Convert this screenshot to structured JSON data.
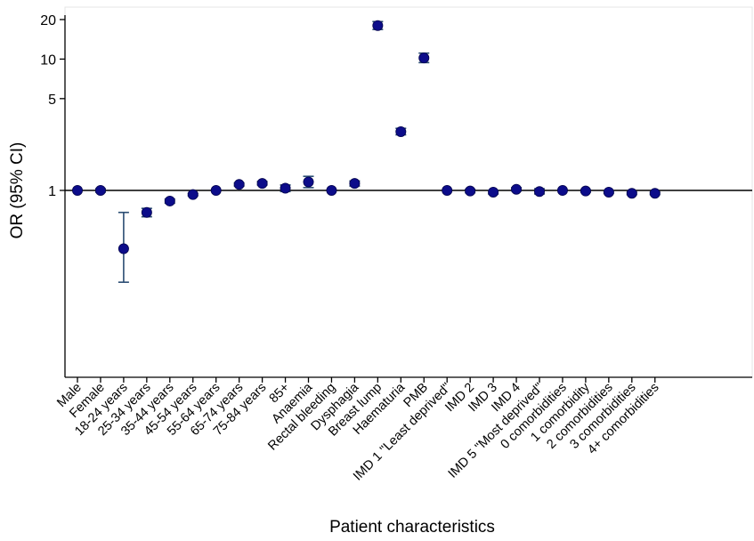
{
  "chart_data": {
    "type": "scatter",
    "title": "",
    "xlabel": "Patient characteristics",
    "ylabel": "OR (95% CI)",
    "y_scale": "log",
    "ylim": [
      0.2,
      21
    ],
    "y_ticks": [
      {
        "value": 1,
        "label": "1"
      },
      {
        "value": 5,
        "label": "5"
      },
      {
        "value": 10,
        "label": "10"
      },
      {
        "value": 20,
        "label": "20"
      }
    ],
    "reference_line": 1,
    "grid": false,
    "legend": "none",
    "colors": {
      "point": "#0c0c8a",
      "ci": "#2b4d73",
      "reference": "#000000",
      "axis": "#000000"
    },
    "points": [
      {
        "label": "Male",
        "or": 1.0,
        "lo": 1.0,
        "hi": 1.0
      },
      {
        "label": "Female",
        "or": 1.0,
        "lo": 0.97,
        "hi": 1.03
      },
      {
        "label": "18-24 years",
        "or": 0.36,
        "lo": 0.2,
        "hi": 0.68
      },
      {
        "label": "25-34 years",
        "or": 0.68,
        "lo": 0.63,
        "hi": 0.73
      },
      {
        "label": "35-44 years",
        "or": 0.83,
        "lo": 0.8,
        "hi": 0.86
      },
      {
        "label": "45-54 years",
        "or": 0.93,
        "lo": 0.91,
        "hi": 0.95
      },
      {
        "label": "55-64 years",
        "or": 1.0,
        "lo": 1.0,
        "hi": 1.0
      },
      {
        "label": "65-74 years",
        "or": 1.11,
        "lo": 1.08,
        "hi": 1.14
      },
      {
        "label": "75-84 years",
        "or": 1.13,
        "lo": 1.1,
        "hi": 1.17
      },
      {
        "label": "85+",
        "or": 1.04,
        "lo": 0.98,
        "hi": 1.1
      },
      {
        "label": "Anaemia",
        "or": 1.16,
        "lo": 1.05,
        "hi": 1.28
      },
      {
        "label": "Rectal bleeding",
        "or": 1.0,
        "lo": 1.0,
        "hi": 1.0
      },
      {
        "label": "Dysphagia",
        "or": 1.13,
        "lo": 1.08,
        "hi": 1.18
      },
      {
        "label": "Breast lump",
        "or": 18.0,
        "lo": 16.8,
        "hi": 19.3
      },
      {
        "label": "Haematuria",
        "or": 2.8,
        "lo": 2.65,
        "hi": 2.97
      },
      {
        "label": "PMB",
        "or": 10.2,
        "lo": 9.4,
        "hi": 11.1
      },
      {
        "label": "IMD 1 \"Least deprived\"",
        "or": 1.0,
        "lo": 1.0,
        "hi": 1.0
      },
      {
        "label": "IMD 2",
        "or": 0.99,
        "lo": 0.96,
        "hi": 1.02
      },
      {
        "label": "IMD 3",
        "or": 0.97,
        "lo": 0.94,
        "hi": 1.0
      },
      {
        "label": "IMD 4",
        "or": 1.02,
        "lo": 0.99,
        "hi": 1.05
      },
      {
        "label": "IMD 5 \"Most deprived\"",
        "or": 0.98,
        "lo": 0.94,
        "hi": 1.03
      },
      {
        "label": "0 comorbidities",
        "or": 1.0,
        "lo": 1.0,
        "hi": 1.0
      },
      {
        "label": "1 comorbidity",
        "or": 0.99,
        "lo": 0.97,
        "hi": 1.01
      },
      {
        "label": "2 comorbidities",
        "or": 0.97,
        "lo": 0.95,
        "hi": 0.99
      },
      {
        "label": "3 comorbidities",
        "or": 0.95,
        "lo": 0.93,
        "hi": 0.97
      },
      {
        "label": "4+ comorbidities",
        "or": 0.95,
        "lo": 0.93,
        "hi": 0.97
      }
    ]
  }
}
